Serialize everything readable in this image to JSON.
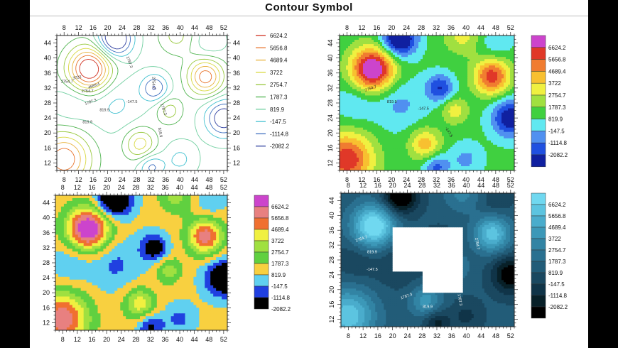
{
  "window": {
    "title": "Contour Symbol"
  },
  "chart_data": [
    {
      "type": "contour",
      "style": "line contours",
      "xticks": [
        8,
        12,
        16,
        20,
        24,
        28,
        32,
        36,
        40,
        44,
        48,
        52
      ],
      "yticks": [
        12,
        16,
        20,
        24,
        28,
        32,
        36,
        40,
        44
      ],
      "xlim": [
        6,
        53
      ],
      "ylim": [
        10,
        46
      ],
      "levels": [
        "6624.2",
        "5656.8",
        "4689.4",
        "3722",
        "2754.7",
        "1787.3",
        "819.9",
        "-147.5",
        "-1114.8",
        "-2082.2"
      ],
      "level_colors": [
        "#d03020",
        "#e8742c",
        "#e8b23c",
        "#d8d840",
        "#98c83c",
        "#50b450",
        "#70cfa0",
        "#40c0d0",
        "#4070c0",
        "#3040a0"
      ],
      "annotations": [
        "4689.4",
        "3722",
        "2754.7",
        "2754.7",
        "1787.3",
        "1787.3",
        "819.9",
        "819.9",
        "-147.5",
        "1787.3",
        "819.9",
        "2754.7"
      ],
      "legend_placement": "right"
    },
    {
      "type": "contour",
      "style": "filled contours",
      "xticks": [
        8,
        12,
        16,
        20,
        24,
        28,
        32,
        36,
        40,
        44,
        48,
        52
      ],
      "yticks": [
        12,
        16,
        20,
        24,
        28,
        32,
        36,
        40,
        44
      ],
      "xlim": [
        6,
        53
      ],
      "ylim": [
        10,
        46
      ],
      "levels": [
        "6624.2",
        "5656.8",
        "4689.4",
        "3722",
        "2754.7",
        "1787.3",
        "819.9",
        "-147.5",
        "-1114.8",
        "-2082.2"
      ],
      "level_colors": [
        "#cc44cc",
        "#e03828",
        "#f07c30",
        "#f8c030",
        "#f0f040",
        "#a0e040",
        "#40d040",
        "#60e8f0",
        "#5090f0",
        "#2050e0",
        "#1020a0"
      ],
      "annotations": [
        "2754.7",
        "819.9",
        "-147.5",
        "-147.5"
      ],
      "legend_placement": "right"
    },
    {
      "type": "heatmap",
      "style": "pixel map",
      "xticks": [
        8,
        12,
        16,
        20,
        24,
        28,
        32,
        36,
        40,
        44,
        48,
        52
      ],
      "yticks": [
        12,
        16,
        20,
        24,
        28,
        32,
        36,
        40,
        44
      ],
      "xlim": [
        6,
        53
      ],
      "ylim": [
        10,
        46
      ],
      "levels": [
        "6624.2",
        "5656.8",
        "4689.4",
        "3722",
        "2754.7",
        "1787.3",
        "819.9",
        "-147.5",
        "-1114.8",
        "-2082.2"
      ],
      "level_colors": [
        "#cc44cc",
        "#e88080",
        "#f07030",
        "#f0f040",
        "#a0e040",
        "#60d040",
        "#f8d040",
        "#60d0f0",
        "#2040e0",
        "#000000"
      ],
      "legend_placement": "right"
    },
    {
      "type": "contour",
      "style": "filled contours, blue shades, with blanked region",
      "xticks": [
        8,
        12,
        16,
        20,
        24,
        28,
        32,
        36,
        40,
        44,
        48,
        52
      ],
      "yticks": [
        12,
        16,
        20,
        24,
        28,
        32,
        36,
        40,
        44
      ],
      "xlim": [
        6,
        53
      ],
      "ylim": [
        10,
        46
      ],
      "levels": [
        "6624.2",
        "5656.8",
        "4689.4",
        "3722",
        "2754.7",
        "1787.3",
        "819.9",
        "-147.5",
        "-1114.8",
        "-2082.2"
      ],
      "level_colors": [
        "#70d8f0",
        "#5cc4e0",
        "#4aaccc",
        "#3c98b8",
        "#3284a4",
        "#2a7090",
        "#225c78",
        "#1a4860",
        "#103448",
        "#082028",
        "#000000"
      ],
      "annotations": [
        "2754.7",
        "819.9",
        "-147.5",
        "1787.3",
        "819.9",
        "1787.3",
        "819.9",
        "2754.7"
      ],
      "legend_placement": "right"
    }
  ]
}
